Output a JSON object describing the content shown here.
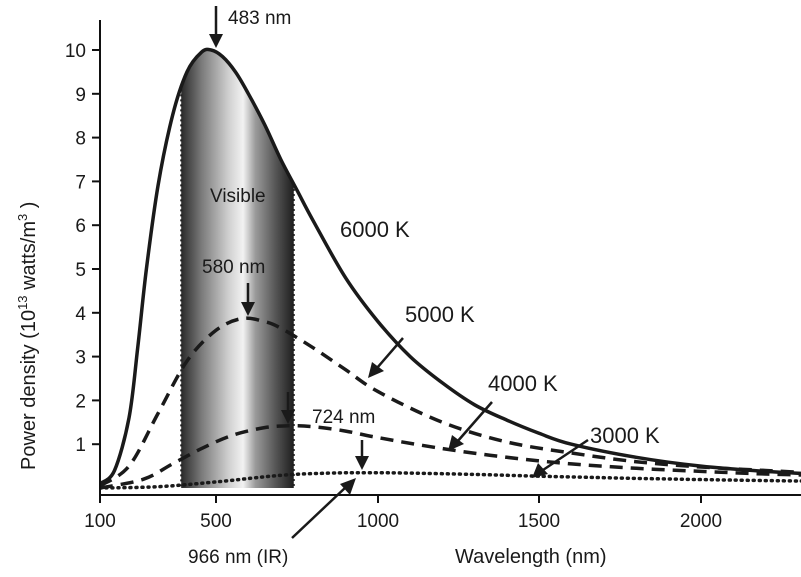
{
  "chart_data": {
    "type": "line",
    "title": "",
    "xlabel": "Wavelength (nm)",
    "ylabel": {
      "prefix": "Power density (10",
      "exp1": "13",
      "mid": " watts/m",
      "exp2": "3",
      "suffix": " )"
    },
    "xlim": [
      100,
      2400
    ],
    "ylim": [
      0,
      10.4
    ],
    "x_ticks": [
      100,
      500,
      1000,
      1500,
      2000
    ],
    "x_tick_labels": [
      "100",
      "500",
      "1000",
      "1500",
      "2000"
    ],
    "y_ticks": [
      1,
      2,
      3,
      4,
      5,
      6,
      7,
      8,
      9,
      10
    ],
    "y_tick_labels": [
      "1",
      "2",
      "3",
      "4",
      "5",
      "6",
      "7",
      "8",
      "9",
      "10"
    ],
    "grid": false,
    "legend": "none",
    "visible_band": {
      "label": "Visible",
      "x_range": [
        380,
        740
      ]
    },
    "series": [
      {
        "name": "6000 K",
        "style": "solid",
        "x": [
          100,
          150,
          200,
          230,
          260,
          300,
          350,
          400,
          450,
          483,
          520,
          560,
          600,
          650,
          700,
          750,
          800,
          900,
          1000,
          1100,
          1200,
          1300,
          1400,
          1500,
          1600,
          1800,
          2000,
          2200,
          2400
        ],
        "y": [
          0.1,
          0.4,
          1.6,
          3.2,
          5.0,
          6.9,
          8.5,
          9.5,
          9.95,
          10.0,
          9.85,
          9.5,
          9.0,
          8.3,
          7.5,
          6.8,
          6.1,
          4.8,
          3.8,
          3.0,
          2.4,
          1.9,
          1.55,
          1.25,
          1.0,
          0.7,
          0.5,
          0.38,
          0.3
        ]
      },
      {
        "name": "5000 K",
        "style": "dashed",
        "x": [
          100,
          200,
          300,
          400,
          500,
          580,
          650,
          700,
          800,
          900,
          1000,
          1200,
          1400,
          1600,
          1800,
          2000,
          2200,
          2400
        ],
        "y": [
          0.05,
          0.5,
          1.7,
          2.9,
          3.6,
          3.87,
          3.8,
          3.65,
          3.2,
          2.7,
          2.2,
          1.5,
          1.05,
          0.8,
          0.6,
          0.48,
          0.4,
          0.32
        ]
      },
      {
        "name": "4000 K",
        "style": "dashed",
        "x": [
          100,
          250,
          350,
          450,
          550,
          650,
          724,
          800,
          900,
          1000,
          1200,
          1400,
          1600,
          1800,
          2000,
          2200,
          2400
        ],
        "y": [
          0.0,
          0.2,
          0.55,
          0.9,
          1.2,
          1.38,
          1.42,
          1.4,
          1.3,
          1.15,
          0.9,
          0.7,
          0.55,
          0.45,
          0.38,
          0.32,
          0.28
        ]
      },
      {
        "name": "3000 K",
        "style": "dotted",
        "x": [
          100,
          300,
          500,
          700,
          850,
          966,
          1100,
          1300,
          1500,
          1800,
          2100,
          2400
        ],
        "y": [
          0.0,
          0.03,
          0.14,
          0.29,
          0.34,
          0.35,
          0.34,
          0.31,
          0.27,
          0.22,
          0.18,
          0.15
        ]
      }
    ],
    "annotations": {
      "peak_6000": "483 nm",
      "peak_5000": "580 nm",
      "peak_4000": "724 nm",
      "peak_3000": "966 nm (IR)"
    }
  }
}
